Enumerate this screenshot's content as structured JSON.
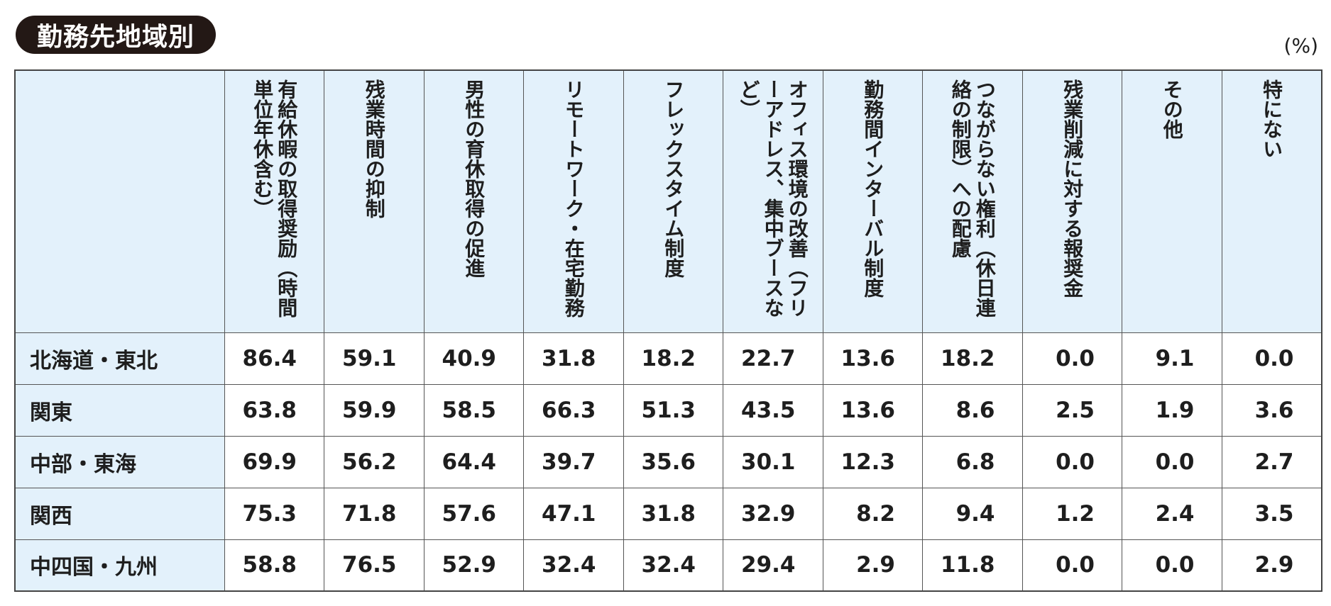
{
  "title": "勤務先地域別",
  "unit": "(%)",
  "columns": [
    "有給休暇の取得奨励（時間単位年休含む）",
    "残業時間の抑制",
    "男性の育休取得の促進",
    "リモートワーク・在宅勤務",
    "フレックスタイム制度",
    "オフィス環境の改善（フリーアドレス、集中ブースなど）",
    "勤務間インターバル制度",
    "つながらない権利（休日連絡の制限）への配慮",
    "残業削減に対する報奨金",
    "その他",
    "特にない"
  ],
  "rows": [
    {
      "region": "北海道・東北",
      "values": [
        "86.4",
        "59.1",
        "40.9",
        "31.8",
        "18.2",
        "22.7",
        "13.6",
        "18.2",
        "0.0",
        "9.1",
        "0.0"
      ]
    },
    {
      "region": "関東",
      "values": [
        "63.8",
        "59.9",
        "58.5",
        "66.3",
        "51.3",
        "43.5",
        "13.6",
        "8.6",
        "2.5",
        "1.9",
        "3.6"
      ]
    },
    {
      "region": "中部・東海",
      "values": [
        "69.9",
        "56.2",
        "64.4",
        "39.7",
        "35.6",
        "30.1",
        "12.3",
        "6.8",
        "0.0",
        "0.0",
        "2.7"
      ]
    },
    {
      "region": "関西",
      "values": [
        "75.3",
        "71.8",
        "57.6",
        "47.1",
        "31.8",
        "32.9",
        "8.2",
        "9.4",
        "1.2",
        "2.4",
        "3.5"
      ]
    },
    {
      "region": "中四国・九州",
      "values": [
        "58.8",
        "76.5",
        "52.9",
        "32.4",
        "32.4",
        "29.4",
        "2.9",
        "11.8",
        "0.0",
        "0.0",
        "2.9"
      ]
    }
  ]
}
